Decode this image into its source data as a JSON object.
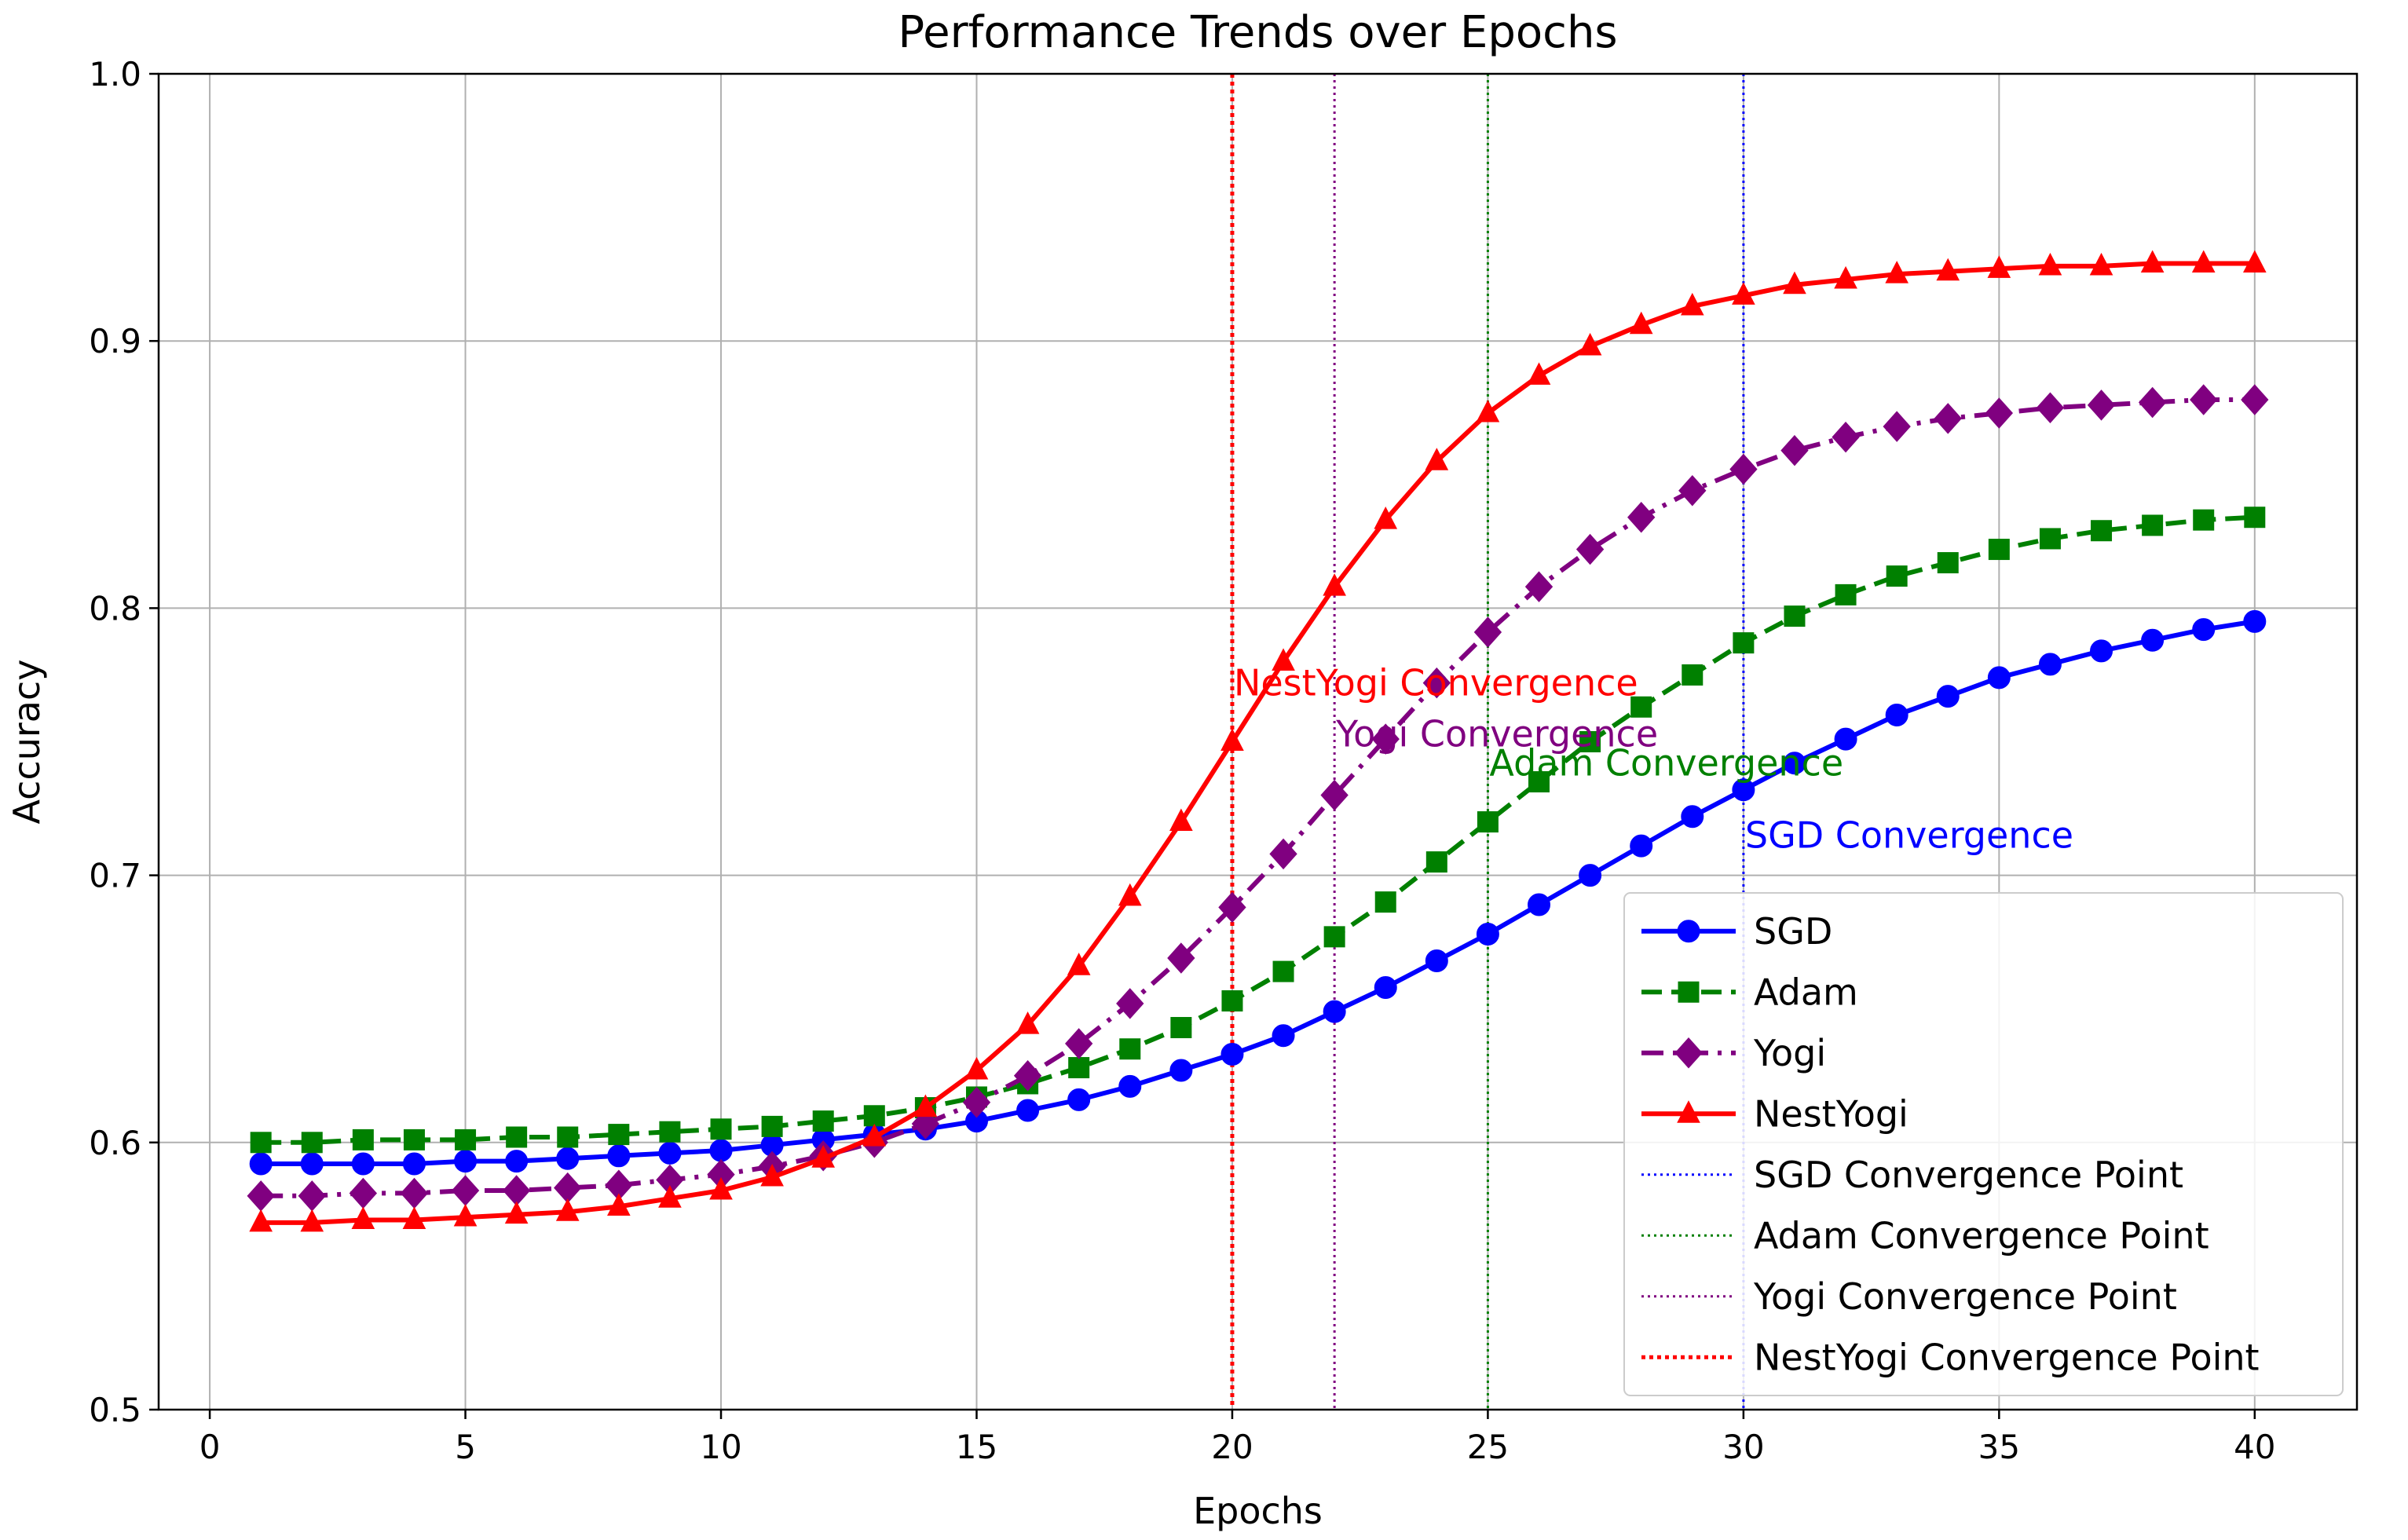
{
  "chart_data": {
    "type": "line",
    "title": "Performance Trends over Epochs",
    "xlabel": "Epochs",
    "ylabel": "Accuracy",
    "xlim": [
      -1,
      42
    ],
    "ylim": [
      0.5,
      1.0
    ],
    "xticks": [
      0,
      5,
      10,
      15,
      20,
      25,
      30,
      35,
      40
    ],
    "yticks": [
      0.5,
      0.6,
      0.7,
      0.8,
      0.9,
      1.0
    ],
    "xtick_labels": [
      "0",
      "5",
      "10",
      "15",
      "20",
      "25",
      "30",
      "35",
      "40"
    ],
    "ytick_labels": [
      "0.5",
      "0.6",
      "0.7",
      "0.8",
      "0.9",
      "1.0"
    ],
    "grid": true,
    "legend_position": "lower-right",
    "x": [
      1,
      2,
      3,
      4,
      5,
      6,
      7,
      8,
      9,
      10,
      11,
      12,
      13,
      14,
      15,
      16,
      17,
      18,
      19,
      20,
      21,
      22,
      23,
      24,
      25,
      26,
      27,
      28,
      29,
      30,
      31,
      32,
      33,
      34,
      35,
      36,
      37,
      38,
      39,
      40
    ],
    "series": [
      {
        "name": "SGD",
        "color": "#0000ff",
        "marker": "circle",
        "line_style": "solid",
        "values": [
          0.592,
          0.592,
          0.592,
          0.592,
          0.593,
          0.593,
          0.594,
          0.595,
          0.596,
          0.597,
          0.599,
          0.601,
          0.603,
          0.605,
          0.608,
          0.612,
          0.616,
          0.621,
          0.627,
          0.633,
          0.64,
          0.649,
          0.658,
          0.668,
          0.678,
          0.689,
          0.7,
          0.711,
          0.722,
          0.732,
          0.742,
          0.751,
          0.76,
          0.767,
          0.774,
          0.779,
          0.784,
          0.788,
          0.792,
          0.795
        ]
      },
      {
        "name": "Adam",
        "color": "#008000",
        "marker": "square",
        "line_style": "dashed",
        "values": [
          0.6,
          0.6,
          0.601,
          0.601,
          0.601,
          0.602,
          0.602,
          0.603,
          0.604,
          0.605,
          0.606,
          0.608,
          0.61,
          0.613,
          0.617,
          0.622,
          0.628,
          0.635,
          0.643,
          0.653,
          0.664,
          0.677,
          0.69,
          0.705,
          0.72,
          0.735,
          0.75,
          0.763,
          0.775,
          0.787,
          0.797,
          0.805,
          0.812,
          0.817,
          0.822,
          0.826,
          0.829,
          0.831,
          0.833,
          0.834
        ]
      },
      {
        "name": "Yogi",
        "color": "#800080",
        "marker": "diamond",
        "line_style": "dashdot",
        "values": [
          0.58,
          0.58,
          0.581,
          0.581,
          0.582,
          0.582,
          0.583,
          0.584,
          0.586,
          0.588,
          0.591,
          0.595,
          0.6,
          0.607,
          0.615,
          0.625,
          0.637,
          0.652,
          0.669,
          0.688,
          0.708,
          0.73,
          0.751,
          0.772,
          0.791,
          0.808,
          0.822,
          0.834,
          0.844,
          0.852,
          0.859,
          0.864,
          0.868,
          0.871,
          0.873,
          0.875,
          0.876,
          0.877,
          0.878,
          0.878
        ]
      },
      {
        "name": "NestYogi",
        "color": "#ff0000",
        "marker": "triangle",
        "line_style": "solid",
        "values": [
          0.57,
          0.57,
          0.571,
          0.571,
          0.572,
          0.573,
          0.574,
          0.576,
          0.579,
          0.582,
          0.587,
          0.594,
          0.602,
          0.613,
          0.627,
          0.644,
          0.666,
          0.692,
          0.72,
          0.75,
          0.78,
          0.808,
          0.833,
          0.855,
          0.873,
          0.887,
          0.898,
          0.906,
          0.913,
          0.917,
          0.921,
          0.923,
          0.925,
          0.926,
          0.927,
          0.928,
          0.928,
          0.929,
          0.929,
          0.929
        ]
      }
    ],
    "convergence_lines": [
      {
        "name": "SGD Convergence Point",
        "x": 30,
        "color": "#0000ff",
        "dash": "dotted",
        "annotation": "SGD Convergence",
        "annotation_y": 0.715
      },
      {
        "name": "Adam Convergence Point",
        "x": 25,
        "color": "#008000",
        "dash": "dotted",
        "annotation": "Adam Convergence",
        "annotation_y": 0.742
      },
      {
        "name": "Yogi Convergence Point",
        "x": 22,
        "color": "#800080",
        "dash": "dotted",
        "annotation": "Yogi Convergence",
        "annotation_y": 0.753
      },
      {
        "name": "NestYogi Convergence Point",
        "x": 20,
        "color": "#ff0000",
        "dash": "dotted-heavy",
        "annotation": "NestYogi Convergence",
        "annotation_y": 0.772
      }
    ]
  }
}
